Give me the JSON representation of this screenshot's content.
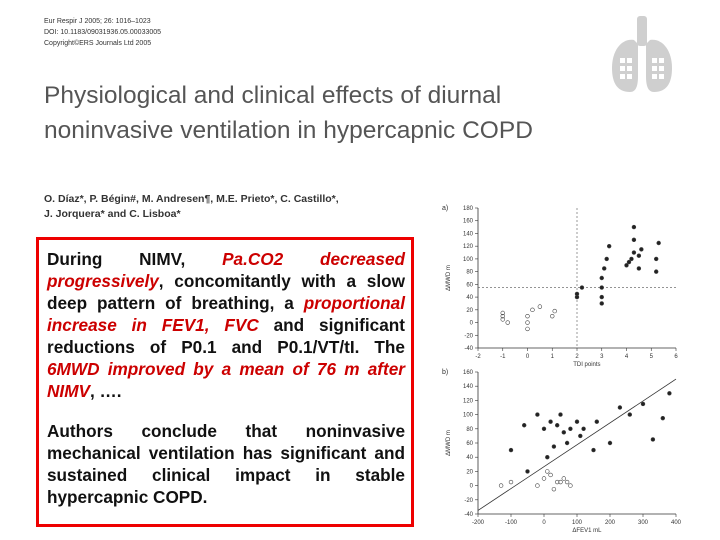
{
  "header": {
    "line1": "Eur Respir J 2005; 26: 1016–1023",
    "line2": "DOI: 10.1183/09031936.05.00033005",
    "line3": "Copyright©ERS Journals Ltd 2005"
  },
  "logo": {
    "icon": "ers-lung-logo",
    "color": "#cccccc"
  },
  "paper": {
    "title": "Physiological and clinical effects of diurnal noninvasive ventilation in hypercapnic COPD",
    "authors_line1": "O. Díaz*, P. Bégin#, M. Andresen¶, M.E. Prieto*, C. Castillo*,",
    "authors_line2": "J. Jorquera* and C. Lisboa*"
  },
  "summary": {
    "p1_a": "During NIMV, ",
    "p1_b": "Pa.CO2 decreased progressively",
    "p1_c": ", concomitantly with a slow deep pattern of breathing, a ",
    "p1_d": "proportional increase in FEV1, FVC",
    "p1_e": " and significant reductions of P0.1 and P0.1/VT/tI. The ",
    "p1_f": "6MWD improved by a mean of 76 m after NIMV",
    "p1_g": ", ….",
    "p2": "Authors conclude that noninvasive mechanical ventilation has significant and sustained clinical impact in stable hypercapnic COPD.",
    "border_color": "#ee0000",
    "highlight_color": "#cc0000"
  },
  "chart_data": [
    {
      "type": "scatter",
      "panel_label": "a)",
      "xlabel": "TDI points",
      "ylabel": "ΔMWD m",
      "xlim": [
        -2,
        6
      ],
      "ylim": [
        -40,
        180
      ],
      "xticks": [
        "-2",
        "-1",
        "0",
        "1",
        "2",
        "3",
        "4",
        "5",
        "6"
      ],
      "yticks": [
        "-40",
        "-20",
        "0",
        "20",
        "40",
        "60",
        "80",
        "100",
        "120",
        "140",
        "160",
        "180"
      ],
      "reference_lines": {
        "x": 2,
        "y": 55
      },
      "series": [
        {
          "marker": "filled",
          "points": [
            [
              2,
              40
            ],
            [
              2,
              45
            ],
            [
              2.2,
              55
            ],
            [
              3,
              30
            ],
            [
              3,
              40
            ],
            [
              3,
              55
            ],
            [
              3,
              70
            ],
            [
              3.1,
              85
            ],
            [
              3.2,
              100
            ],
            [
              3.3,
              120
            ],
            [
              4,
              90
            ],
            [
              4.1,
              95
            ],
            [
              4.2,
              100
            ],
            [
              4.3,
              110
            ],
            [
              4.5,
              85
            ],
            [
              4.5,
              105
            ],
            [
              4.6,
              115
            ],
            [
              4.3,
              130
            ],
            [
              4.3,
              150
            ],
            [
              5.2,
              80
            ],
            [
              5.2,
              100
            ],
            [
              5.3,
              125
            ]
          ]
        },
        {
          "marker": "open",
          "points": [
            [
              -1,
              5
            ],
            [
              -1,
              10
            ],
            [
              -1,
              15
            ],
            [
              -0.8,
              0
            ],
            [
              0,
              -10
            ],
            [
              0,
              0
            ],
            [
              0,
              10
            ],
            [
              0.2,
              20
            ],
            [
              0.5,
              25
            ],
            [
              1,
              10
            ],
            [
              1.1,
              18
            ]
          ]
        }
      ]
    },
    {
      "type": "scatter",
      "panel_label": "b)",
      "xlabel": "ΔFEV1 mL",
      "ylabel": "ΔMWD m",
      "xlim": [
        -200,
        400
      ],
      "ylim": [
        -40,
        160
      ],
      "xticks": [
        "-200",
        "-100",
        "0",
        "100",
        "200",
        "300",
        "400"
      ],
      "yticks": [
        "-40",
        "-20",
        "0",
        "20",
        "40",
        "60",
        "80",
        "100",
        "120",
        "140",
        "160"
      ],
      "trend_line": [
        [
          -200,
          -35
        ],
        [
          400,
          150
        ]
      ],
      "series": [
        {
          "marker": "filled",
          "points": [
            [
              -100,
              50
            ],
            [
              -60,
              85
            ],
            [
              -50,
              20
            ],
            [
              -20,
              100
            ],
            [
              0,
              80
            ],
            [
              10,
              40
            ],
            [
              20,
              90
            ],
            [
              30,
              55
            ],
            [
              40,
              85
            ],
            [
              50,
              100
            ],
            [
              60,
              75
            ],
            [
              70,
              60
            ],
            [
              80,
              80
            ],
            [
              100,
              90
            ],
            [
              110,
              70
            ],
            [
              120,
              80
            ],
            [
              150,
              50
            ],
            [
              160,
              90
            ],
            [
              200,
              60
            ],
            [
              230,
              110
            ],
            [
              260,
              100
            ],
            [
              300,
              115
            ],
            [
              330,
              65
            ],
            [
              360,
              95
            ],
            [
              380,
              130
            ]
          ]
        },
        {
          "marker": "open",
          "points": [
            [
              -130,
              0
            ],
            [
              -100,
              5
            ],
            [
              -20,
              0
            ],
            [
              0,
              10
            ],
            [
              10,
              20
            ],
            [
              20,
              15
            ],
            [
              30,
              -5
            ],
            [
              40,
              5
            ],
            [
              50,
              5
            ],
            [
              60,
              10
            ],
            [
              70,
              5
            ],
            [
              80,
              0
            ]
          ]
        }
      ]
    }
  ]
}
